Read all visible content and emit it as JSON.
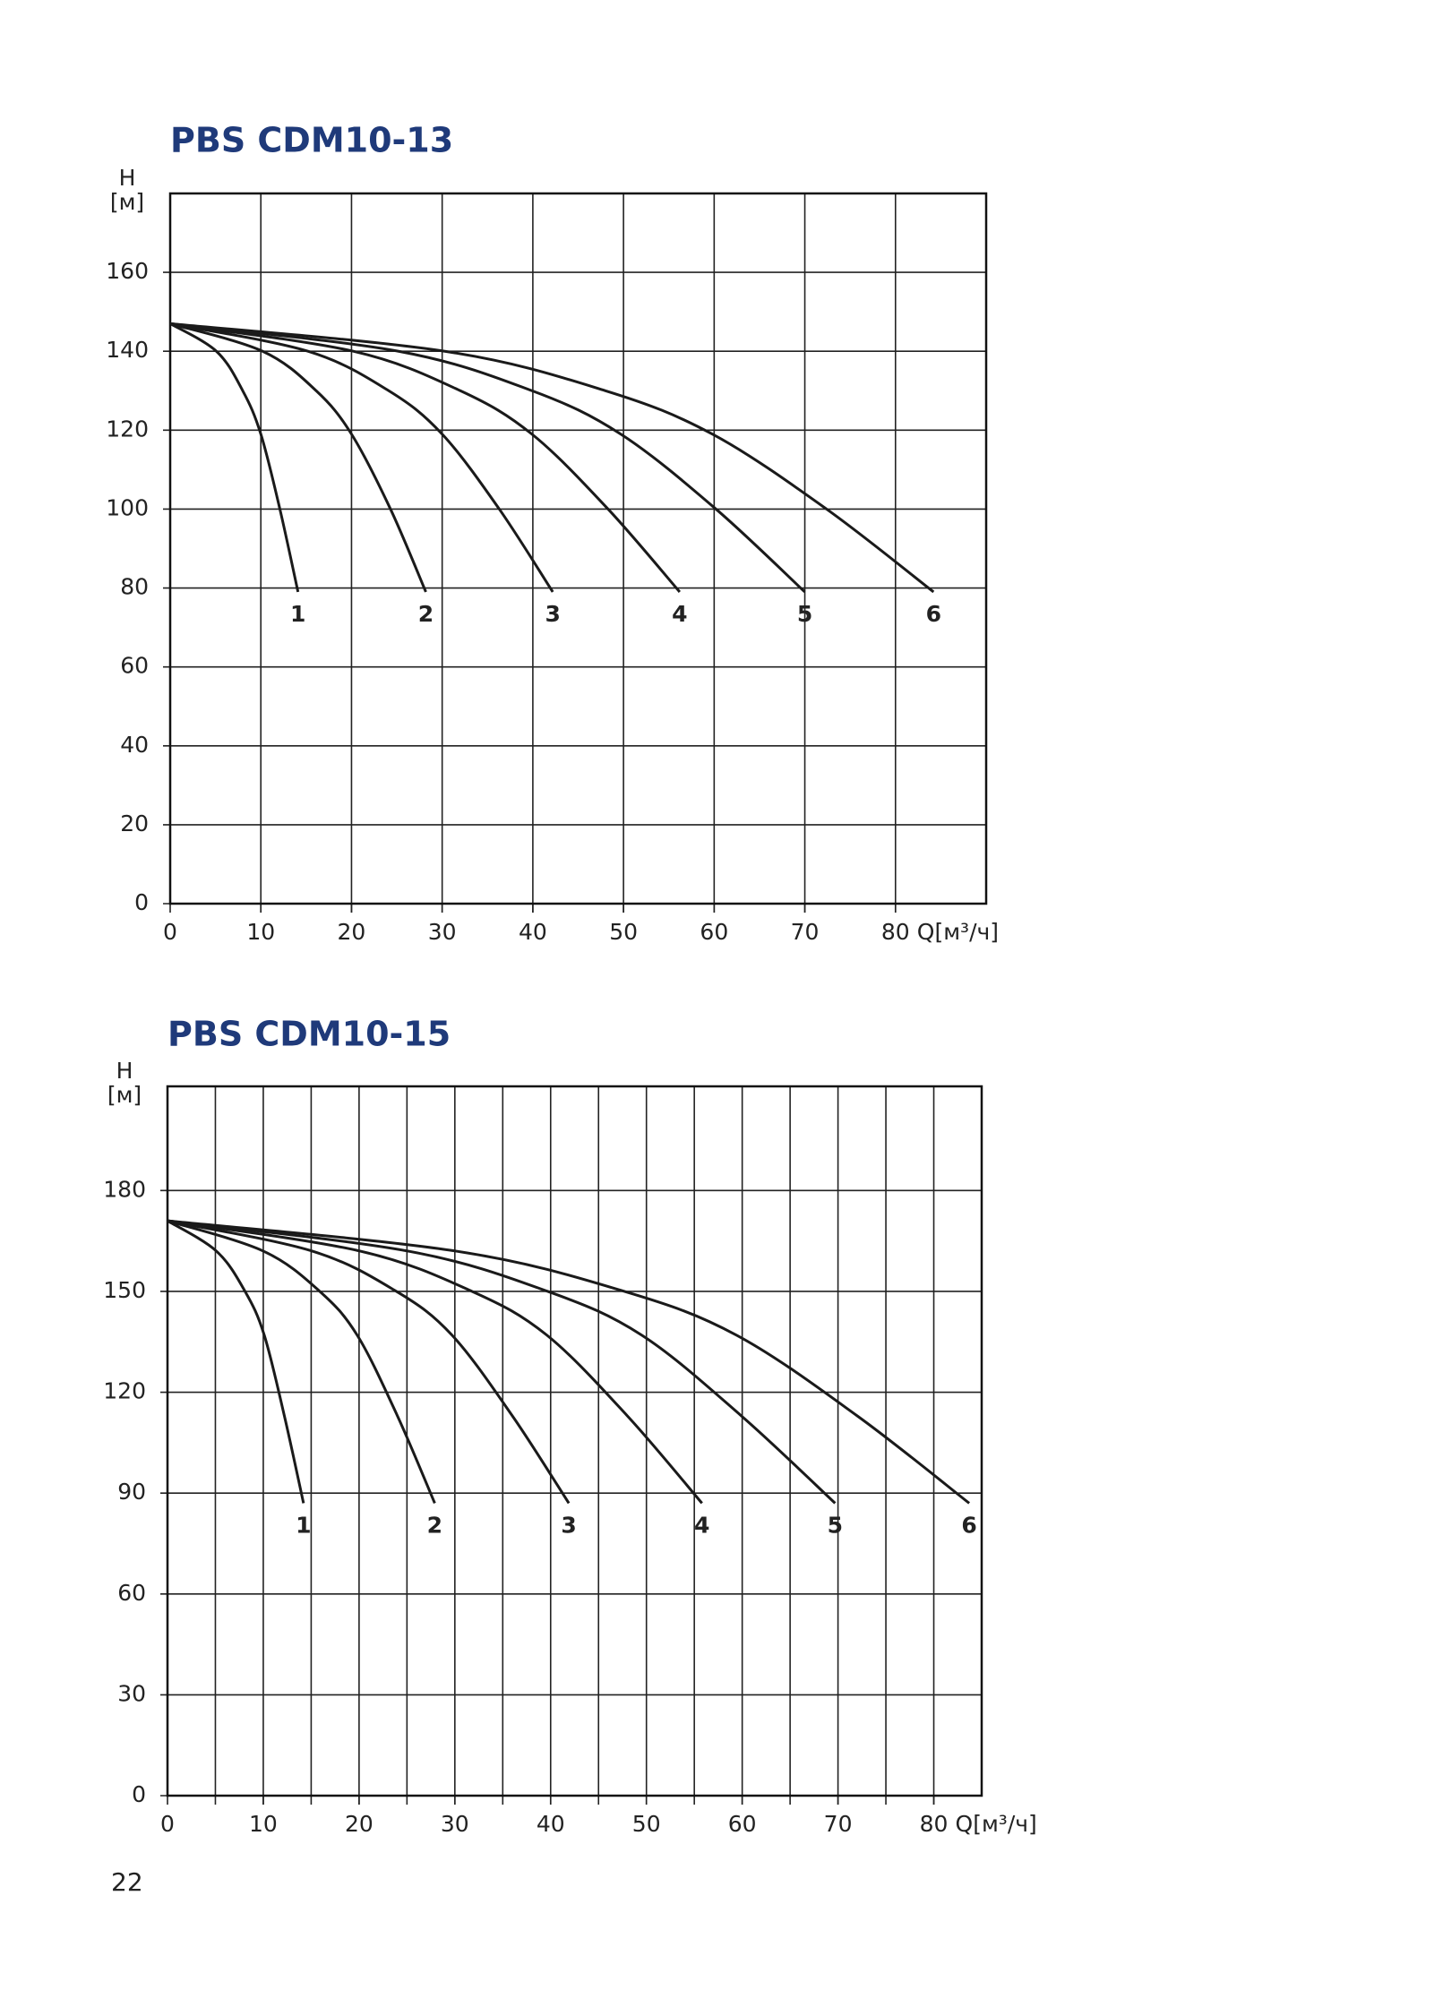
{
  "chart_data": [
    {
      "type": "line",
      "title": "PBS CDM10-13",
      "ylabel": "Н",
      "yunit": "[м]",
      "xlabel": "Q[м³/ч]",
      "xlim": [
        0,
        90
      ],
      "ylim": [
        0,
        180
      ],
      "xticks": [
        0,
        10,
        20,
        30,
        40,
        50,
        60,
        70,
        80
      ],
      "yticks": [
        0,
        20,
        40,
        60,
        80,
        100,
        120,
        140,
        160
      ],
      "xgrid_step": 10,
      "grid": true,
      "line_color": "#1a1a1a",
      "label_color": "#1f3a7a",
      "series": [
        {
          "name": "1",
          "x": [
            0,
            5.1,
            8.0,
            10.0,
            12.1,
            14.1
          ],
          "values": [
            147,
            140,
            130,
            119,
            100,
            79
          ]
        },
        {
          "name": "2",
          "x": [
            0,
            10.2,
            16.1,
            20.0,
            24.3,
            28.2
          ],
          "values": [
            147,
            140,
            130,
            119,
            100,
            79
          ]
        },
        {
          "name": "3",
          "x": [
            0,
            15.2,
            24.1,
            30.0,
            36.3,
            42.2
          ],
          "values": [
            147,
            140,
            130,
            119,
            100,
            79
          ]
        },
        {
          "name": "4",
          "x": [
            0,
            20.2,
            32.0,
            39.9,
            48.3,
            56.2
          ],
          "values": [
            147,
            140,
            130,
            119,
            100,
            79
          ]
        },
        {
          "name": "5",
          "x": [
            0,
            25.2,
            39.9,
            49.7,
            60.2,
            70
          ],
          "values": [
            147,
            140,
            130,
            119,
            100,
            79
          ]
        },
        {
          "name": "6",
          "x": [
            0,
            30.3,
            48.0,
            59.8,
            72.4,
            84.2
          ],
          "values": [
            147,
            140,
            130,
            119,
            100,
            79
          ]
        }
      ]
    },
    {
      "type": "line",
      "title": "PBS CDM10-15",
      "ylabel": "Н",
      "yunit": "[м]",
      "xlabel": "Q[м³/ч]",
      "xlim": [
        0,
        85
      ],
      "ylim": [
        0,
        211
      ],
      "xticks": [
        0,
        10,
        20,
        30,
        40,
        50,
        60,
        70,
        80
      ],
      "yticks": [
        0,
        30,
        60,
        90,
        120,
        150,
        180
      ],
      "xgrid_step": 5,
      "grid": true,
      "line_color": "#1a1a1a",
      "label_color": "#1f3a7a",
      "series": [
        {
          "name": "1",
          "x": [
            0,
            5.1,
            8.1,
            10.1,
            12.2,
            14.2
          ],
          "values": [
            171,
            162,
            150,
            137,
            113,
            87
          ]
        },
        {
          "name": "2",
          "x": [
            0,
            10.0,
            15.9,
            19.8,
            24.0,
            27.9
          ],
          "values": [
            171,
            162,
            150,
            137,
            113,
            87
          ]
        },
        {
          "name": "3",
          "x": [
            0,
            15.1,
            23.9,
            29.7,
            36.0,
            41.9
          ],
          "values": [
            171,
            162,
            150,
            137,
            113,
            87
          ]
        },
        {
          "name": "4",
          "x": [
            0,
            20.1,
            31.8,
            39.6,
            48.0,
            55.8
          ],
          "values": [
            171,
            162,
            150,
            137,
            113,
            87
          ]
        },
        {
          "name": "5",
          "x": [
            0,
            25.1,
            39.7,
            49.5,
            59.9,
            69.7
          ],
          "values": [
            171,
            162,
            150,
            137,
            113,
            87
          ]
        },
        {
          "name": "6",
          "x": [
            0,
            30.1,
            47.7,
            59.4,
            72.0,
            83.7
          ],
          "values": [
            171,
            162,
            150,
            137,
            113,
            87
          ]
        }
      ]
    }
  ],
  "page_number": "22"
}
